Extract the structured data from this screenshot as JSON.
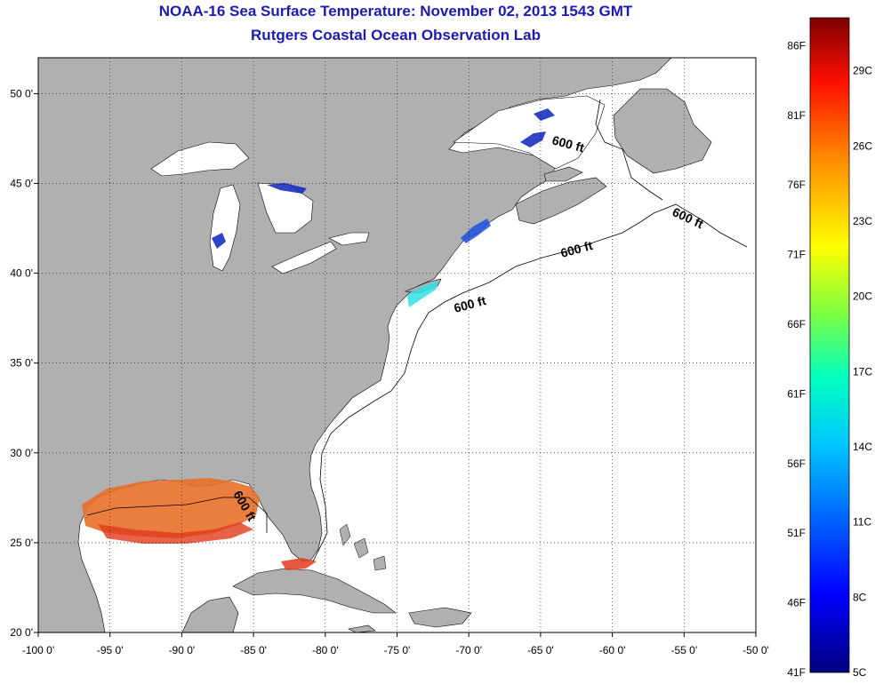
{
  "title": "NOAA-16 Sea Surface Temperature:  November 02, 2013 1543 GMT",
  "subtitle": "Rutgers Coastal Ocean Observation Lab",
  "colors": {
    "land": "#b0b0b0",
    "ocean": "#ffffff",
    "title": "#1b1bb3",
    "grid": "#000000"
  },
  "axes": {
    "lon_range": [
      -100,
      -50
    ],
    "lat_range": [
      20,
      52
    ],
    "x_ticks": [
      "-100 0'",
      "-95 0'",
      "-90 0'",
      "-85 0'",
      "-80 0'",
      "-75 0'",
      "-70 0'",
      "-65 0'",
      "-60 0'",
      "-55 0'",
      "-50 0'"
    ],
    "y_ticks": [
      "50 0'",
      "45 0'",
      "40 0'",
      "35 0'",
      "30 0'",
      "25 0'",
      "20 0'"
    ],
    "grid": "dotted"
  },
  "contour_labels": [
    "600 ft",
    "600 ft",
    "600 ft",
    "600 ft",
    "600 ft"
  ],
  "colorbar": {
    "range_f": [
      41,
      88
    ],
    "fahrenheit_labels": [
      "86F",
      "81F",
      "76F",
      "71F",
      "66F",
      "61F",
      "56F",
      "51F",
      "46F",
      "41F"
    ],
    "celsius_labels": [
      "29C",
      "26C",
      "23C",
      "20C",
      "17C",
      "14C",
      "11C",
      "8C",
      "5C"
    ]
  }
}
